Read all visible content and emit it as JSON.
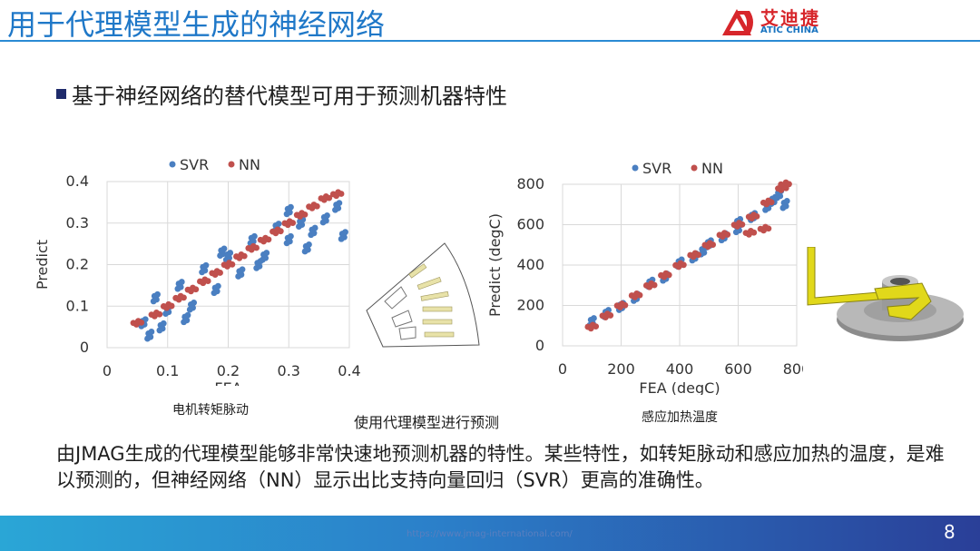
{
  "header": {
    "title": "用于代理模型生成的神经网络",
    "logo_cn": "艾迪捷",
    "logo_en": "ATIC CHINA"
  },
  "bullet": {
    "text": "基于神经网络的替代模型可用于预测机器特性"
  },
  "captions": {
    "left": "电机转矩脉动",
    "middle": "使用代理模型进行预测",
    "right": "感应加热温度"
  },
  "body_text": "由JMAG生成的代理模型能够非常快速地预测机器的特性。某些特性，如转矩脉动和感应加热的温度，是难以预测的，但神经网络（NN）显示出比支持向量回归（SVR）更高的准确性。",
  "footer": {
    "url": "https://www.jmag-international.com/",
    "page_number": "8"
  },
  "colors": {
    "svr": "#4a7fc1",
    "nn": "#c0504d",
    "title": "#1f78c8"
  },
  "chart_data": [
    {
      "type": "scatter",
      "title": "",
      "xlabel": "FEA",
      "ylabel": "Predict",
      "xlim": [
        0,
        0.4
      ],
      "ylim": [
        0,
        0.4
      ],
      "xticks": [
        "0",
        "0.1",
        "0.2",
        "0.3",
        "0.4"
      ],
      "yticks": [
        "0",
        "0.1",
        "0.2",
        "0.3",
        "0.4"
      ],
      "grid": true,
      "legend_position": "top",
      "series": [
        {
          "name": "SVR",
          "points": [
            [
              0.06,
              0.06
            ],
            [
              0.08,
              0.12
            ],
            [
              0.1,
              0.09
            ],
            [
              0.12,
              0.15
            ],
            [
              0.14,
              0.1
            ],
            [
              0.16,
              0.19
            ],
            [
              0.18,
              0.14
            ],
            [
              0.2,
              0.22
            ],
            [
              0.22,
              0.18
            ],
            [
              0.24,
              0.26
            ],
            [
              0.26,
              0.22
            ],
            [
              0.28,
              0.29
            ],
            [
              0.3,
              0.26
            ],
            [
              0.32,
              0.3
            ],
            [
              0.34,
              0.28
            ],
            [
              0.36,
              0.31
            ],
            [
              0.38,
              0.34
            ],
            [
              0.07,
              0.03
            ],
            [
              0.09,
              0.05
            ],
            [
              0.13,
              0.07
            ],
            [
              0.19,
              0.23
            ],
            [
              0.25,
              0.2
            ],
            [
              0.3,
              0.33
            ],
            [
              0.33,
              0.24
            ],
            [
              0.39,
              0.27
            ]
          ]
        },
        {
          "name": "NN",
          "points": [
            [
              0.05,
              0.06
            ],
            [
              0.08,
              0.08
            ],
            [
              0.1,
              0.1
            ],
            [
              0.12,
              0.12
            ],
            [
              0.14,
              0.14
            ],
            [
              0.16,
              0.16
            ],
            [
              0.18,
              0.18
            ],
            [
              0.2,
              0.2
            ],
            [
              0.22,
              0.22
            ],
            [
              0.24,
              0.24
            ],
            [
              0.26,
              0.26
            ],
            [
              0.28,
              0.28
            ],
            [
              0.3,
              0.3
            ],
            [
              0.32,
              0.32
            ],
            [
              0.34,
              0.34
            ],
            [
              0.36,
              0.36
            ],
            [
              0.38,
              0.37
            ]
          ]
        }
      ]
    },
    {
      "type": "scatter",
      "title": "",
      "xlabel": "FEA (degC)",
      "ylabel": "Predict (degC)",
      "xlim": [
        0,
        800
      ],
      "ylim": [
        0,
        800
      ],
      "xticks": [
        "0",
        "200",
        "400",
        "600",
        "800"
      ],
      "yticks": [
        "0",
        "200",
        "400",
        "600",
        "800"
      ],
      "grid": true,
      "legend_position": "top",
      "series": [
        {
          "name": "SVR",
          "points": [
            [
              100,
              120
            ],
            [
              150,
              160
            ],
            [
              200,
              195
            ],
            [
              250,
              240
            ],
            [
              300,
              310
            ],
            [
              350,
              340
            ],
            [
              400,
              410
            ],
            [
              450,
              440
            ],
            [
              500,
              505
            ],
            [
              550,
              540
            ],
            [
              600,
              610
            ],
            [
              650,
              640
            ],
            [
              700,
              690
            ],
            [
              720,
              720
            ],
            [
              740,
              750
            ],
            [
              760,
              700
            ],
            [
              600,
              580
            ],
            [
              480,
              470
            ]
          ]
        },
        {
          "name": "NN",
          "points": [
            [
              100,
              95
            ],
            [
              150,
              150
            ],
            [
              200,
              200
            ],
            [
              250,
              250
            ],
            [
              300,
              300
            ],
            [
              350,
              350
            ],
            [
              400,
              400
            ],
            [
              450,
              450
            ],
            [
              500,
              500
            ],
            [
              550,
              550
            ],
            [
              600,
              600
            ],
            [
              650,
              640
            ],
            [
              700,
              710
            ],
            [
              750,
              780
            ],
            [
              760,
              800
            ],
            [
              690,
              580
            ],
            [
              640,
              560
            ]
          ]
        }
      ]
    }
  ]
}
